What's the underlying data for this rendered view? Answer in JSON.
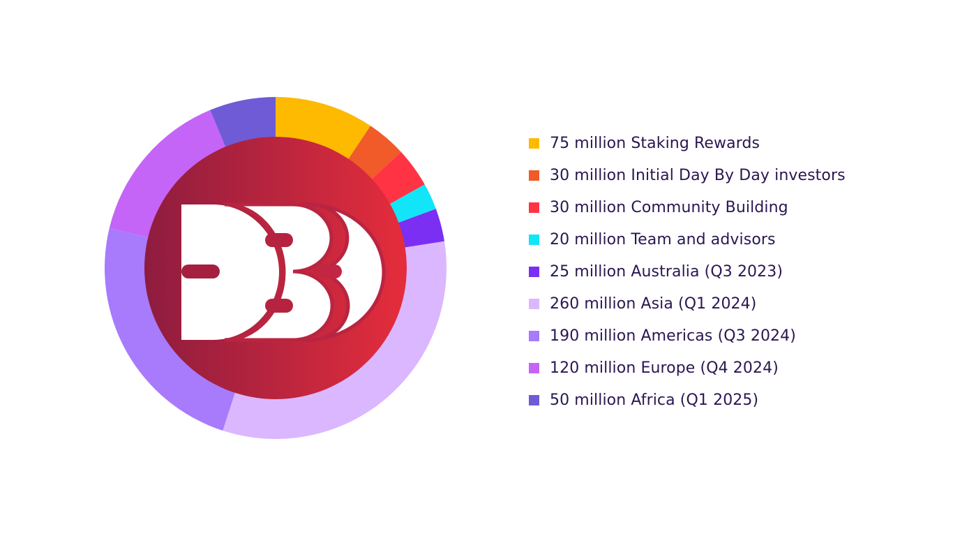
{
  "chart_data": {
    "type": "pie",
    "variant": "donut",
    "unit": "million",
    "categories": [
      "Staking Rewards",
      "Initial Day By Day investors",
      "Community Building",
      "Team and advisors",
      "Australia (Q3 2023)",
      "Asia (Q1 2024)",
      "Americas (Q3 2024)",
      "Europe (Q4 2024)",
      "Africa (Q1 2025)"
    ],
    "values": [
      75,
      30,
      30,
      20,
      25,
      260,
      190,
      120,
      50
    ],
    "legend_labels": [
      "75 million Staking Rewards",
      "30 million Initial Day By Day investors",
      "30 million Community Building",
      "20 million Team and advisors",
      "25 million Australia (Q3 2023)",
      "260 million Asia (Q1 2024)",
      "190 million Americas (Q3 2024)",
      "120 million Europe (Q4 2024)",
      "50 million Africa (Q1 2025)"
    ],
    "colors": [
      "#fdba00",
      "#f15a29",
      "#ff3344",
      "#12e5f7",
      "#7b2ff2",
      "#dbb7ff",
      "#a77bfb",
      "#c465f7",
      "#6f5bd6"
    ],
    "start_angle_deg": 0,
    "direction": "clockwise",
    "legend_position": "right",
    "center_logo": {
      "icon": "dbd-logo-icon",
      "gradient": [
        "#8e1c3f",
        "#e52d3c"
      ]
    }
  }
}
